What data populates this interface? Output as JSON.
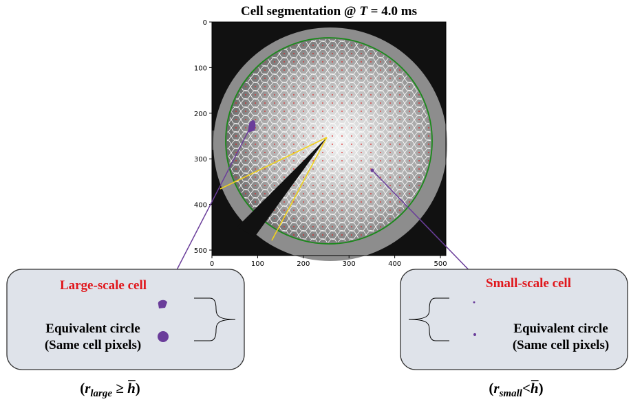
{
  "title": {
    "prefix": "Cell segmentation @ ",
    "variable": "T",
    "suffix": " = 4.0 ms"
  },
  "axes": {
    "xlim": [
      0,
      512
    ],
    "ylim": [
      0,
      512
    ],
    "xticks": [
      0,
      100,
      200,
      300,
      400,
      500
    ],
    "yticks": [
      0,
      100,
      200,
      300,
      400,
      500
    ]
  },
  "left_panel": {
    "label": "Large-scale cell",
    "circle_line1": "Equivalent circle",
    "circle_line2": "(Same cell pixels)",
    "formula": {
      "open": "(",
      "variable": "r",
      "subscript": "large",
      "relation": " ≥ ",
      "bar_variable": "h",
      "close": ")"
    }
  },
  "right_panel": {
    "label": "Small-scale cell",
    "circle_line1": "Equivalent circle",
    "circle_line2": "(Same cell pixels)",
    "formula": {
      "open": "(",
      "variable": "r",
      "subscript": "small",
      "relation": "<",
      "bar_variable": "h",
      "close": ")"
    }
  }
}
